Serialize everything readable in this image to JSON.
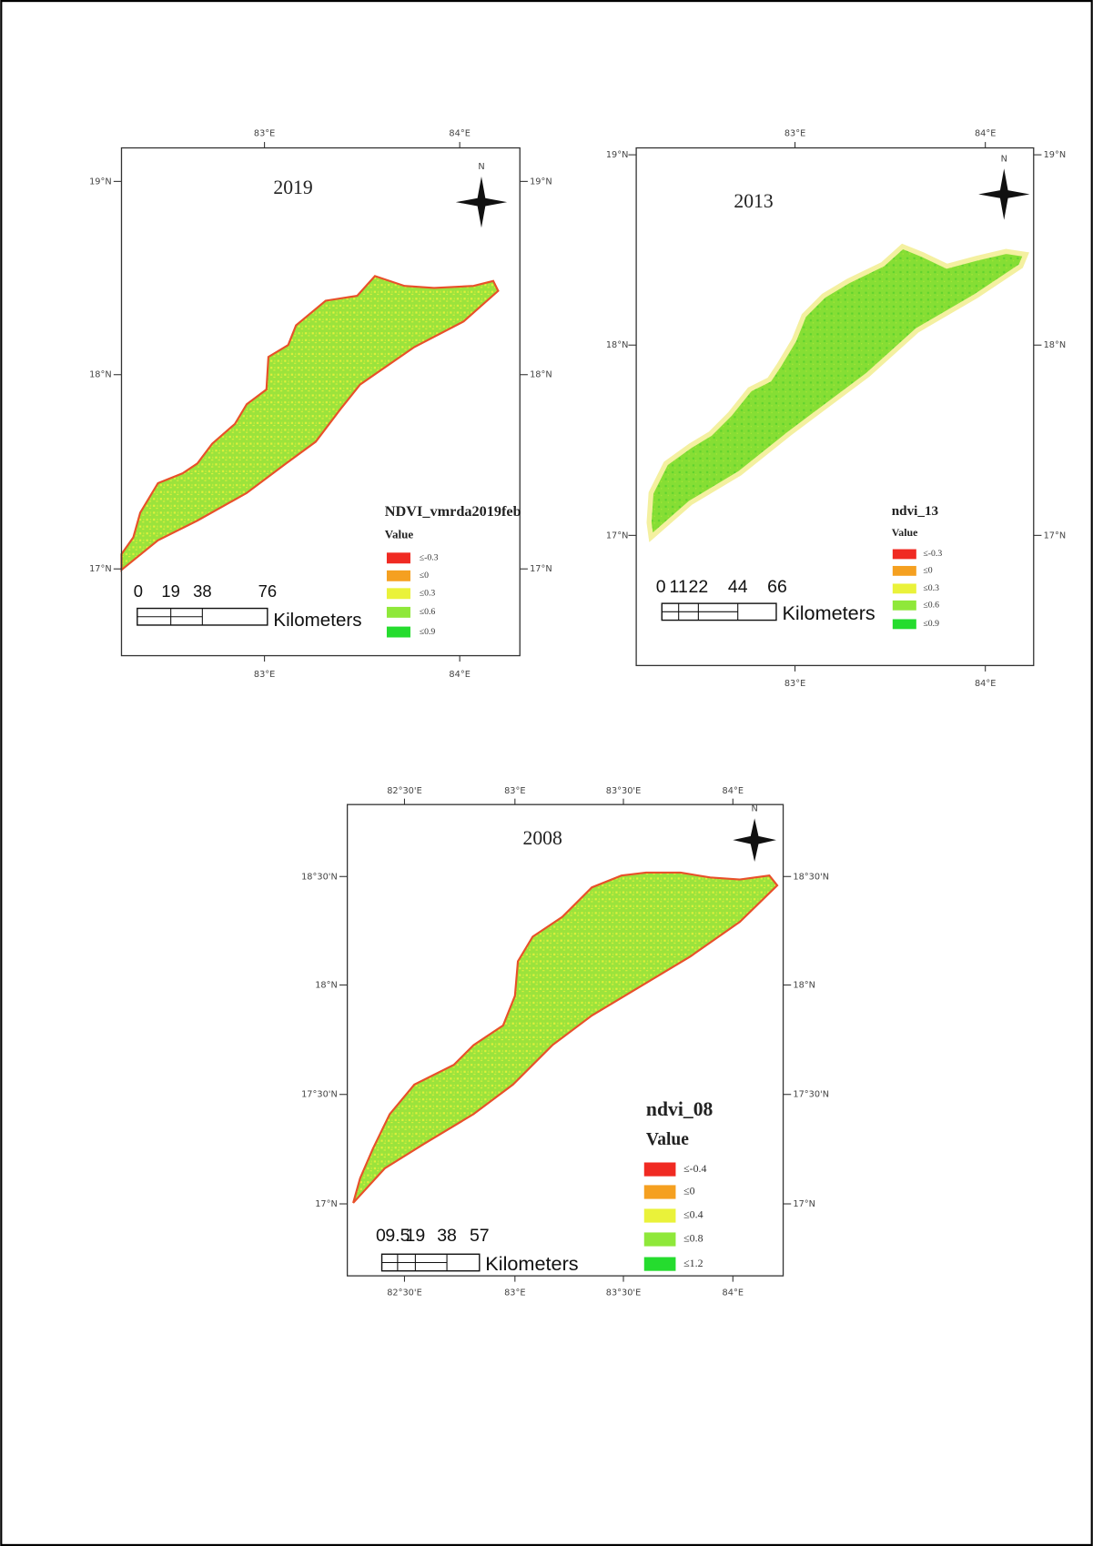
{
  "maps": [
    {
      "year": "2019",
      "top_ticks": [
        "83°E",
        "84°E"
      ],
      "bottom_ticks": [
        "83°E",
        "84°E"
      ],
      "left_ticks": [
        "19°N",
        "18°N",
        "17°N"
      ],
      "right_ticks": [
        "19°N",
        "18°N",
        "17°N"
      ],
      "north": "N",
      "legend": {
        "title": "NDVI_vmrda2019feb",
        "subtitle": "Value",
        "items": [
          {
            "label": "≤-0.3",
            "color": "#f02a22"
          },
          {
            "label": "≤0",
            "color": "#f5a020"
          },
          {
            "label": "≤0.3",
            "color": "#eaf23a"
          },
          {
            "label": "≤0.6",
            "color": "#8fe83a"
          },
          {
            "label": "≤0.9",
            "color": "#25dc2e"
          }
        ]
      },
      "scale": {
        "labels": [
          "0",
          "19",
          "38",
          "76"
        ],
        "unit": "Kilometers"
      }
    },
    {
      "year": "2013",
      "top_ticks": [
        "83°E",
        "84°E"
      ],
      "bottom_ticks": [
        "83°E",
        "84°E"
      ],
      "left_ticks": [
        "19°N",
        "18°N",
        "17°N"
      ],
      "right_ticks": [
        "19°N",
        "18°N",
        "17°N"
      ],
      "north": "N",
      "legend": {
        "title": "ndvi_13",
        "subtitle": "Value",
        "items": [
          {
            "label": "≤-0.3",
            "color": "#f02a22"
          },
          {
            "label": "≤0",
            "color": "#f5a020"
          },
          {
            "label": "≤0.3",
            "color": "#eaf23a"
          },
          {
            "label": "≤0.6",
            "color": "#8fe83a"
          },
          {
            "label": "≤0.9",
            "color": "#25dc2e"
          }
        ]
      },
      "scale": {
        "labels": [
          "0",
          "11",
          "22",
          "44",
          "66"
        ],
        "unit": "Kilometers"
      }
    },
    {
      "year": "2008",
      "top_ticks": [
        "82°30'E",
        "83°E",
        "83°30'E",
        "84°E"
      ],
      "bottom_ticks": [
        "82°30'E",
        "83°E",
        "83°30'E",
        "84°E"
      ],
      "left_ticks": [
        "18°30'N",
        "18°N",
        "17°30'N",
        "17°N"
      ],
      "right_ticks": [
        "18°30'N",
        "18°N",
        "17°30'N",
        "17°N"
      ],
      "north": "N",
      "legend": {
        "title": "ndvi_08",
        "subtitle": "Value",
        "items": [
          {
            "label": "≤-0.4",
            "color": "#f02a22"
          },
          {
            "label": "≤0",
            "color": "#f5a020"
          },
          {
            "label": "≤0.4",
            "color": "#eaf23a"
          },
          {
            "label": "≤0.8",
            "color": "#8fe83a"
          },
          {
            "label": "≤1.2",
            "color": "#25dc2e"
          }
        ]
      },
      "scale": {
        "labels": [
          "0",
          "9.5",
          "19",
          "38",
          "57"
        ],
        "unit": "Kilometers"
      }
    }
  ]
}
